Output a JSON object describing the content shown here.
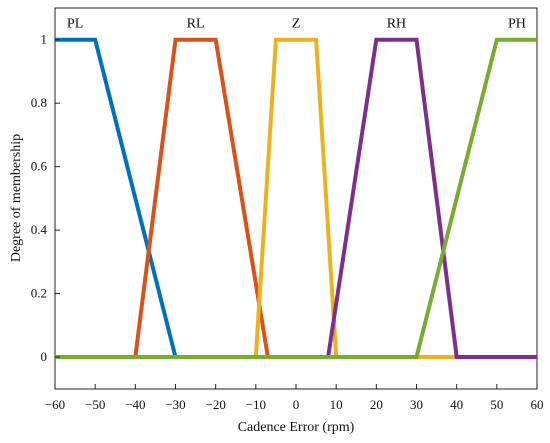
{
  "chart_data": {
    "type": "line",
    "title": "",
    "xlabel": "Cadence Error (rpm)",
    "ylabel": "Degree of membership",
    "xlim": [
      -60,
      60
    ],
    "ylim": [
      0,
      1
    ],
    "xticks": [
      -60,
      -50,
      -40,
      -30,
      -20,
      -10,
      0,
      10,
      20,
      30,
      40,
      50,
      60
    ],
    "yticks": [
      0,
      0.2,
      0.4,
      0.6,
      0.8,
      1
    ],
    "xtick_labels": [
      "−60",
      "−50",
      "−40",
      "−30",
      "−20",
      "−10",
      "0",
      "10",
      "20",
      "30",
      "40",
      "50",
      "60"
    ],
    "ytick_labels": [
      "0",
      "0.2",
      "0.4",
      "0.6",
      "0.8",
      "1"
    ],
    "grid": false,
    "series": [
      {
        "name": "PL",
        "color": "#0072BD",
        "x": [
          -60,
          -50,
          -30,
          60
        ],
        "y": [
          1,
          1,
          0,
          0
        ]
      },
      {
        "name": "RL",
        "color": "#D95319",
        "x": [
          -60,
          -40,
          -30,
          -20,
          -7,
          60
        ],
        "y": [
          0,
          0,
          1,
          1,
          0,
          0
        ]
      },
      {
        "name": "Z",
        "color": "#EDB120",
        "x": [
          -60,
          -10,
          -5,
          5,
          10,
          60
        ],
        "y": [
          0,
          0,
          1,
          1,
          0,
          0
        ]
      },
      {
        "name": "RH",
        "color": "#7E2F8E",
        "x": [
          -60,
          8,
          20,
          30,
          40,
          60
        ],
        "y": [
          0,
          0,
          1,
          1,
          0,
          0
        ]
      },
      {
        "name": "PH",
        "color": "#77AC30",
        "x": [
          -60,
          30,
          50,
          60
        ],
        "y": [
          0,
          0,
          1,
          1
        ]
      }
    ],
    "series_labels": [
      {
        "text": "PL",
        "x": -55
      },
      {
        "text": "RL",
        "x": -25
      },
      {
        "text": "Z",
        "x": 0
      },
      {
        "text": "RH",
        "x": 25
      },
      {
        "text": "PH",
        "x": 55
      }
    ]
  }
}
